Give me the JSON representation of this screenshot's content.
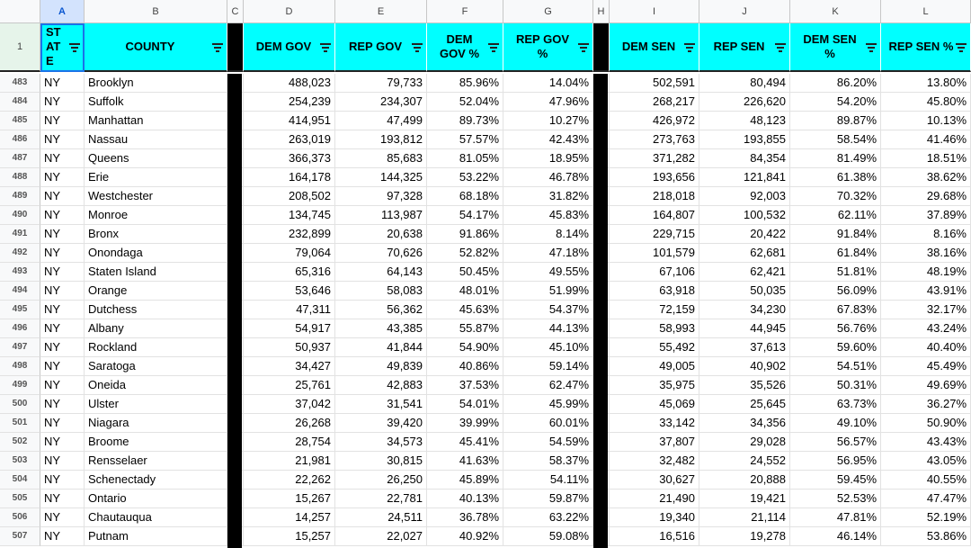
{
  "columns": [
    "A",
    "B",
    "C",
    "D",
    "E",
    "F",
    "G",
    "H",
    "I",
    "J",
    "K",
    "L"
  ],
  "header_row_number": "1",
  "headers": {
    "state": "ST AT E",
    "county": "COUNTY",
    "dem_gov": "DEM GOV",
    "rep_gov": "REP GOV",
    "dem_gov_pct": "DEM GOV %",
    "rep_gov_pct": "REP GOV %",
    "dem_sen": "DEM SEN",
    "rep_sen": "REP SEN",
    "dem_sen_pct": "DEM SEN %",
    "rep_sen_pct": "REP SEN %"
  },
  "rows": [
    {
      "n": "483",
      "state": "NY",
      "county": "Brooklyn",
      "dg": "488,023",
      "rg": "79,733",
      "dgp": "85.96%",
      "rgp": "14.04%",
      "ds": "502,591",
      "rs": "80,494",
      "dsp": "86.20%",
      "rsp": "13.80%"
    },
    {
      "n": "484",
      "state": "NY",
      "county": "Suffolk",
      "dg": "254,239",
      "rg": "234,307",
      "dgp": "52.04%",
      "rgp": "47.96%",
      "ds": "268,217",
      "rs": "226,620",
      "dsp": "54.20%",
      "rsp": "45.80%"
    },
    {
      "n": "485",
      "state": "NY",
      "county": "Manhattan",
      "dg": "414,951",
      "rg": "47,499",
      "dgp": "89.73%",
      "rgp": "10.27%",
      "ds": "426,972",
      "rs": "48,123",
      "dsp": "89.87%",
      "rsp": "10.13%"
    },
    {
      "n": "486",
      "state": "NY",
      "county": "Nassau",
      "dg": "263,019",
      "rg": "193,812",
      "dgp": "57.57%",
      "rgp": "42.43%",
      "ds": "273,763",
      "rs": "193,855",
      "dsp": "58.54%",
      "rsp": "41.46%"
    },
    {
      "n": "487",
      "state": "NY",
      "county": "Queens",
      "dg": "366,373",
      "rg": "85,683",
      "dgp": "81.05%",
      "rgp": "18.95%",
      "ds": "371,282",
      "rs": "84,354",
      "dsp": "81.49%",
      "rsp": "18.51%"
    },
    {
      "n": "488",
      "state": "NY",
      "county": "Erie",
      "dg": "164,178",
      "rg": "144,325",
      "dgp": "53.22%",
      "rgp": "46.78%",
      "ds": "193,656",
      "rs": "121,841",
      "dsp": "61.38%",
      "rsp": "38.62%"
    },
    {
      "n": "489",
      "state": "NY",
      "county": "Westchester",
      "dg": "208,502",
      "rg": "97,328",
      "dgp": "68.18%",
      "rgp": "31.82%",
      "ds": "218,018",
      "rs": "92,003",
      "dsp": "70.32%",
      "rsp": "29.68%"
    },
    {
      "n": "490",
      "state": "NY",
      "county": "Monroe",
      "dg": "134,745",
      "rg": "113,987",
      "dgp": "54.17%",
      "rgp": "45.83%",
      "ds": "164,807",
      "rs": "100,532",
      "dsp": "62.11%",
      "rsp": "37.89%"
    },
    {
      "n": "491",
      "state": "NY",
      "county": "Bronx",
      "dg": "232,899",
      "rg": "20,638",
      "dgp": "91.86%",
      "rgp": "8.14%",
      "ds": "229,715",
      "rs": "20,422",
      "dsp": "91.84%",
      "rsp": "8.16%"
    },
    {
      "n": "492",
      "state": "NY",
      "county": "Onondaga",
      "dg": "79,064",
      "rg": "70,626",
      "dgp": "52.82%",
      "rgp": "47.18%",
      "ds": "101,579",
      "rs": "62,681",
      "dsp": "61.84%",
      "rsp": "38.16%"
    },
    {
      "n": "493",
      "state": "NY",
      "county": "Staten Island",
      "dg": "65,316",
      "rg": "64,143",
      "dgp": "50.45%",
      "rgp": "49.55%",
      "ds": "67,106",
      "rs": "62,421",
      "dsp": "51.81%",
      "rsp": "48.19%"
    },
    {
      "n": "494",
      "state": "NY",
      "county": "Orange",
      "dg": "53,646",
      "rg": "58,083",
      "dgp": "48.01%",
      "rgp": "51.99%",
      "ds": "63,918",
      "rs": "50,035",
      "dsp": "56.09%",
      "rsp": "43.91%"
    },
    {
      "n": "495",
      "state": "NY",
      "county": "Dutchess",
      "dg": "47,311",
      "rg": "56,362",
      "dgp": "45.63%",
      "rgp": "54.37%",
      "ds": "72,159",
      "rs": "34,230",
      "dsp": "67.83%",
      "rsp": "32.17%"
    },
    {
      "n": "496",
      "state": "NY",
      "county": "Albany",
      "dg": "54,917",
      "rg": "43,385",
      "dgp": "55.87%",
      "rgp": "44.13%",
      "ds": "58,993",
      "rs": "44,945",
      "dsp": "56.76%",
      "rsp": "43.24%"
    },
    {
      "n": "497",
      "state": "NY",
      "county": "Rockland",
      "dg": "50,937",
      "rg": "41,844",
      "dgp": "54.90%",
      "rgp": "45.10%",
      "ds": "55,492",
      "rs": "37,613",
      "dsp": "59.60%",
      "rsp": "40.40%"
    },
    {
      "n": "498",
      "state": "NY",
      "county": "Saratoga",
      "dg": "34,427",
      "rg": "49,839",
      "dgp": "40.86%",
      "rgp": "59.14%",
      "ds": "49,005",
      "rs": "40,902",
      "dsp": "54.51%",
      "rsp": "45.49%"
    },
    {
      "n": "499",
      "state": "NY",
      "county": "Oneida",
      "dg": "25,761",
      "rg": "42,883",
      "dgp": "37.53%",
      "rgp": "62.47%",
      "ds": "35,975",
      "rs": "35,526",
      "dsp": "50.31%",
      "rsp": "49.69%"
    },
    {
      "n": "500",
      "state": "NY",
      "county": "Ulster",
      "dg": "37,042",
      "rg": "31,541",
      "dgp": "54.01%",
      "rgp": "45.99%",
      "ds": "45,069",
      "rs": "25,645",
      "dsp": "63.73%",
      "rsp": "36.27%"
    },
    {
      "n": "501",
      "state": "NY",
      "county": "Niagara",
      "dg": "26,268",
      "rg": "39,420",
      "dgp": "39.99%",
      "rgp": "60.01%",
      "ds": "33,142",
      "rs": "34,356",
      "dsp": "49.10%",
      "rsp": "50.90%"
    },
    {
      "n": "502",
      "state": "NY",
      "county": "Broome",
      "dg": "28,754",
      "rg": "34,573",
      "dgp": "45.41%",
      "rgp": "54.59%",
      "ds": "37,807",
      "rs": "29,028",
      "dsp": "56.57%",
      "rsp": "43.43%"
    },
    {
      "n": "503",
      "state": "NY",
      "county": "Rensselaer",
      "dg": "21,981",
      "rg": "30,815",
      "dgp": "41.63%",
      "rgp": "58.37%",
      "ds": "32,482",
      "rs": "24,552",
      "dsp": "56.95%",
      "rsp": "43.05%"
    },
    {
      "n": "504",
      "state": "NY",
      "county": "Schenectady",
      "dg": "22,262",
      "rg": "26,250",
      "dgp": "45.89%",
      "rgp": "54.11%",
      "ds": "30,627",
      "rs": "20,888",
      "dsp": "59.45%",
      "rsp": "40.55%"
    },
    {
      "n": "505",
      "state": "NY",
      "county": "Ontario",
      "dg": "15,267",
      "rg": "22,781",
      "dgp": "40.13%",
      "rgp": "59.87%",
      "ds": "21,490",
      "rs": "19,421",
      "dsp": "52.53%",
      "rsp": "47.47%"
    },
    {
      "n": "506",
      "state": "NY",
      "county": "Chautauqua",
      "dg": "14,257",
      "rg": "24,511",
      "dgp": "36.78%",
      "rgp": "63.22%",
      "ds": "19,340",
      "rs": "21,114",
      "dsp": "47.81%",
      "rsp": "52.19%"
    },
    {
      "n": "507",
      "state": "NY",
      "county": "Putnam",
      "dg": "15,257",
      "rg": "22,027",
      "dgp": "40.92%",
      "rgp": "59.08%",
      "ds": "16,516",
      "rs": "19,278",
      "dsp": "46.14%",
      "rsp": "53.86%"
    }
  ],
  "colors": {
    "header_fill": "#00ffff",
    "divider_fill": "#000000",
    "selection": "#1a73e8"
  }
}
